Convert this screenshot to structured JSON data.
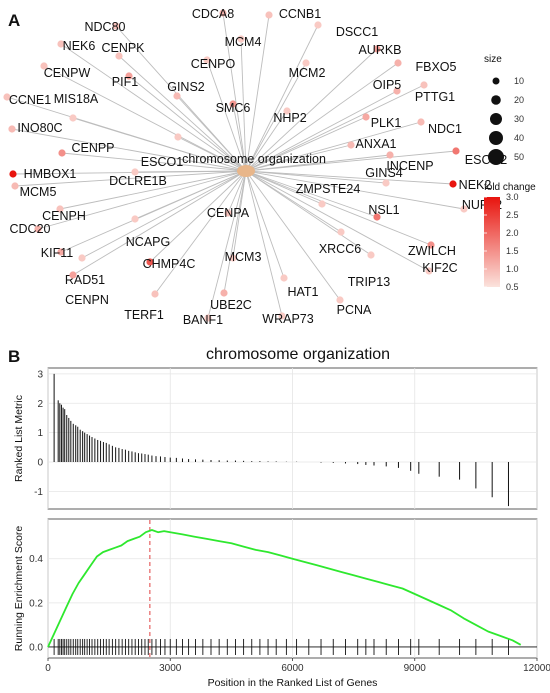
{
  "panels": {
    "a": "A",
    "b": "B"
  },
  "network": {
    "hub": {
      "label": "chromosome organization",
      "color": "#e8b68a"
    },
    "genes": [
      {
        "label": "NDC80",
        "fc": 0.9
      },
      {
        "label": "CDCA8",
        "fc": 1.1
      },
      {
        "label": "CCNB1",
        "fc": 0.9
      },
      {
        "label": "DSCC1",
        "fc": 0.8
      },
      {
        "label": "NEK6",
        "fc": 0.9
      },
      {
        "label": "CENPK",
        "fc": 0.9
      },
      {
        "label": "MCM4",
        "fc": 0.8
      },
      {
        "label": "AURKB",
        "fc": 1.3
      },
      {
        "label": "FBXO5",
        "fc": 1.1
      },
      {
        "label": "CENPW",
        "fc": 0.9
      },
      {
        "label": "PIF1",
        "fc": 1.3
      },
      {
        "label": "CENPO",
        "fc": 0.8
      },
      {
        "label": "MCM2",
        "fc": 0.8
      },
      {
        "label": "OIP5",
        "fc": 1.1
      },
      {
        "label": "CCNE1",
        "fc": 0.9
      },
      {
        "label": "GINS2",
        "fc": 1.0
      },
      {
        "label": "SMC6",
        "fc": 1.4
      },
      {
        "label": "PTTG1",
        "fc": 0.9
      },
      {
        "label": "INO80C",
        "fc": 1.0
      },
      {
        "label": "MIS18A",
        "fc": 0.8
      },
      {
        "label": "NHP2",
        "fc": 0.8
      },
      {
        "label": "NDC1",
        "fc": 1.0
      },
      {
        "label": "PLK1",
        "fc": 1.2
      },
      {
        "label": "CENPP",
        "fc": 1.5
      },
      {
        "label": "ANXA1",
        "fc": 1.0
      },
      {
        "label": "ESCO1",
        "fc": 0.8
      },
      {
        "label": "ESCO2",
        "fc": 1.8
      },
      {
        "label": "INCENP",
        "fc": 1.1
      },
      {
        "label": "HMBOX1",
        "fc": 3.0
      },
      {
        "label": "NEK2",
        "fc": 3.0
      },
      {
        "label": "DCLRE1B",
        "fc": 0.8
      },
      {
        "label": "MCM5",
        "fc": 1.0
      },
      {
        "label": "NUP62",
        "fc": 0.8
      },
      {
        "label": "GINS4",
        "fc": 0.8
      },
      {
        "label": "CENPH",
        "fc": 0.9
      },
      {
        "label": "ZMPSTE24",
        "fc": 0.8
      },
      {
        "label": "CENPA",
        "fc": 0.9
      },
      {
        "label": "NSL1",
        "fc": 1.8
      },
      {
        "label": "CDC20",
        "fc": 1.1
      },
      {
        "label": "NCAPG",
        "fc": 0.8
      },
      {
        "label": "ZWILCH",
        "fc": 1.5
      },
      {
        "label": "XRCC6",
        "fc": 0.8
      },
      {
        "label": "KIF11",
        "fc": 1.2
      },
      {
        "label": "RAD51",
        "fc": 0.8
      },
      {
        "label": "CHMP4C",
        "fc": 2.2
      },
      {
        "label": "KIF2C",
        "fc": 0.8
      },
      {
        "label": "MCM3",
        "fc": 0.8
      },
      {
        "label": "TRIP13",
        "fc": 0.8
      },
      {
        "label": "CENPN",
        "fc": 1.3
      },
      {
        "label": "HAT1",
        "fc": 0.8
      },
      {
        "label": "UBE2C",
        "fc": 1.1
      },
      {
        "label": "PCNA",
        "fc": 0.8
      },
      {
        "label": "TERF1",
        "fc": 0.9
      },
      {
        "label": "BANF1",
        "fc": 0.8
      },
      {
        "label": "WRAP73",
        "fc": 0.8
      }
    ],
    "size_legend": {
      "title": "size",
      "values": [
        10,
        20,
        30,
        40,
        50
      ]
    },
    "color_legend": {
      "title": "fold change",
      "ticks": [
        3.0,
        2.5,
        2.0,
        1.5,
        1.0,
        0.5
      ],
      "low_color": "#fbe3dd",
      "high_color": "#e8140e"
    }
  },
  "chart_data": {
    "type": "line",
    "title": "chromosome organization",
    "xlabel": "Position in the Ranked List of Genes",
    "xlim": [
      0,
      12000
    ],
    "x_ticks": [
      0,
      3000,
      6000,
      9000,
      12000
    ],
    "ranked_list": {
      "ylabel": "Ranked List Metric",
      "ylim": [
        -1.6,
        3.2
      ],
      "y_ticks": [
        -1,
        0,
        1,
        2,
        3
      ],
      "hits": [
        [
          150,
          3.0
        ],
        [
          250,
          2.1
        ],
        [
          290,
          2.0
        ],
        [
          330,
          1.95
        ],
        [
          370,
          1.85
        ],
        [
          410,
          1.8
        ],
        [
          460,
          1.6
        ],
        [
          510,
          1.5
        ],
        [
          560,
          1.4
        ],
        [
          620,
          1.3
        ],
        [
          680,
          1.25
        ],
        [
          730,
          1.2
        ],
        [
          790,
          1.1
        ],
        [
          850,
          1.05
        ],
        [
          900,
          1.0
        ],
        [
          960,
          0.95
        ],
        [
          1020,
          0.9
        ],
        [
          1080,
          0.85
        ],
        [
          1150,
          0.8
        ],
        [
          1220,
          0.75
        ],
        [
          1290,
          0.72
        ],
        [
          1360,
          0.68
        ],
        [
          1430,
          0.65
        ],
        [
          1500,
          0.6
        ],
        [
          1580,
          0.55
        ],
        [
          1660,
          0.5
        ],
        [
          1740,
          0.48
        ],
        [
          1820,
          0.44
        ],
        [
          1900,
          0.42
        ],
        [
          1980,
          0.38
        ],
        [
          2060,
          0.36
        ],
        [
          2140,
          0.33
        ],
        [
          2220,
          0.3
        ],
        [
          2300,
          0.29
        ],
        [
          2380,
          0.27
        ],
        [
          2460,
          0.25
        ],
        [
          2550,
          0.22
        ],
        [
          2650,
          0.2
        ],
        [
          2760,
          0.19
        ],
        [
          2870,
          0.17
        ],
        [
          3000,
          0.15
        ],
        [
          3150,
          0.14
        ],
        [
          3300,
          0.12
        ],
        [
          3450,
          0.1
        ],
        [
          3620,
          0.09
        ],
        [
          3800,
          0.08
        ],
        [
          4000,
          0.07
        ],
        [
          4200,
          0.06
        ],
        [
          4400,
          0.05
        ],
        [
          4600,
          0.05
        ],
        [
          4800,
          0.04
        ],
        [
          5000,
          0.03
        ],
        [
          5200,
          0.03
        ],
        [
          5400,
          0.02
        ],
        [
          5600,
          0.02
        ],
        [
          5850,
          0.01
        ],
        [
          6100,
          0.01
        ],
        [
          6400,
          0.0
        ],
        [
          6700,
          -0.02
        ],
        [
          7000,
          -0.03
        ],
        [
          7300,
          -0.05
        ],
        [
          7600,
          -0.07
        ],
        [
          7800,
          -0.1
        ],
        [
          8000,
          -0.12
        ],
        [
          8300,
          -0.15
        ],
        [
          8600,
          -0.2
        ],
        [
          8900,
          -0.3
        ],
        [
          9100,
          -0.4
        ],
        [
          9600,
          -0.5
        ],
        [
          10100,
          -0.6
        ],
        [
          10500,
          -0.9
        ],
        [
          10900,
          -1.2
        ],
        [
          11300,
          -1.5
        ]
      ]
    },
    "running_es": {
      "ylabel": "Running Enrichment Score",
      "ylim": [
        -0.05,
        0.58
      ],
      "y_ticks": [
        0.0,
        0.2,
        0.4
      ],
      "x": [
        0,
        150,
        300,
        450,
        600,
        750,
        900,
        1050,
        1200,
        1350,
        1500,
        1650,
        1800,
        1950,
        2100,
        2250,
        2400,
        2550,
        2700,
        2850,
        3000,
        3300,
        3600,
        3900,
        4200,
        4500,
        4800,
        5100,
        5400,
        5700,
        6000,
        6300,
        6600,
        6900,
        7200,
        7500,
        7800,
        8100,
        8400,
        8700,
        9000,
        9300,
        9600,
        9900,
        10200,
        10500,
        10800,
        11100,
        11400,
        11600
      ],
      "y": [
        0.0,
        0.06,
        0.12,
        0.18,
        0.24,
        0.29,
        0.33,
        0.37,
        0.41,
        0.43,
        0.44,
        0.45,
        0.46,
        0.48,
        0.49,
        0.5,
        0.52,
        0.53,
        0.52,
        0.525,
        0.52,
        0.51,
        0.5,
        0.49,
        0.48,
        0.47,
        0.455,
        0.44,
        0.43,
        0.415,
        0.4,
        0.385,
        0.37,
        0.355,
        0.34,
        0.325,
        0.31,
        0.295,
        0.28,
        0.265,
        0.24,
        0.215,
        0.19,
        0.165,
        0.13,
        0.1,
        0.07,
        0.05,
        0.03,
        0.01
      ]
    },
    "peak_x": 2500,
    "peak_color": "#e04040",
    "line_color": "#2ee82e",
    "hit_positions": [
      150,
      250,
      290,
      330,
      370,
      410,
      460,
      510,
      560,
      620,
      680,
      730,
      790,
      850,
      900,
      960,
      1020,
      1080,
      1150,
      1220,
      1290,
      1360,
      1430,
      1500,
      1580,
      1660,
      1740,
      1820,
      1900,
      1980,
      2060,
      2140,
      2220,
      2300,
      2380,
      2460,
      2550,
      2650,
      2760,
      2870,
      3000,
      3150,
      3300,
      3450,
      3620,
      3800,
      4000,
      4200,
      4400,
      4600,
      4800,
      5000,
      5200,
      5400,
      5600,
      5850,
      6100,
      6400,
      6700,
      7000,
      7300,
      7600,
      7800,
      8000,
      8300,
      8600,
      8900,
      9100,
      9600,
      10100,
      10500,
      10900,
      11300
    ]
  }
}
